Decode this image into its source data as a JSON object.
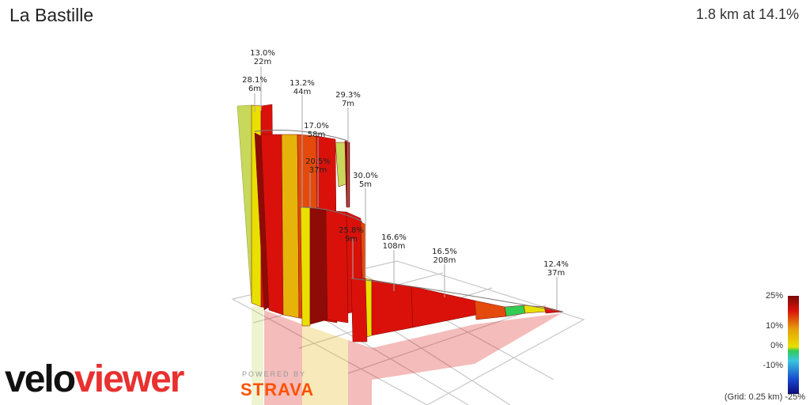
{
  "header": {
    "title": "La Bastille",
    "summary": "1.8 km at 14.1%"
  },
  "chart_data": {
    "type": "area",
    "segments": [
      {
        "gradient_pct": 28.1,
        "distance_m": 6
      },
      {
        "gradient_pct": 13.0,
        "distance_m": 22
      },
      {
        "gradient_pct": 13.2,
        "distance_m": 44
      },
      {
        "gradient_pct": 17.0,
        "distance_m": 58
      },
      {
        "gradient_pct": 20.5,
        "distance_m": 37
      },
      {
        "gradient_pct": 29.3,
        "distance_m": 7
      },
      {
        "gradient_pct": 30.0,
        "distance_m": 5
      },
      {
        "gradient_pct": 25.8,
        "distance_m": 9
      },
      {
        "gradient_pct": 16.6,
        "distance_m": 108
      },
      {
        "gradient_pct": 16.5,
        "distance_m": 208
      },
      {
        "gradient_pct": 12.4,
        "distance_m": 37
      }
    ],
    "segment_labels": [
      {
        "grade": "28.1%",
        "dist": "6m"
      },
      {
        "grade": "13.0%",
        "dist": "22m"
      },
      {
        "grade": "13.2%",
        "dist": "44m"
      },
      {
        "grade": "17.0%",
        "dist": "58m"
      },
      {
        "grade": "20.5%",
        "dist": "37m"
      },
      {
        "grade": "29.3%",
        "dist": "7m"
      },
      {
        "grade": "30.0%",
        "dist": "5m"
      },
      {
        "grade": "25.8%",
        "dist": "9m"
      },
      {
        "grade": "16.6%",
        "dist": "108m"
      },
      {
        "grade": "16.5%",
        "dist": "208m"
      },
      {
        "grade": "12.4%",
        "dist": "37m"
      }
    ],
    "legend": {
      "ticks": [
        "25%",
        "10%",
        "0%",
        "-10%",
        "-25%"
      ],
      "grid_note": "(Grid: 0.25 km)"
    },
    "colors": {
      "steep": "#d9110a",
      "dark": "#8e0b07",
      "orange": "#e34a0c",
      "amber": "#e6b30a",
      "yellow": "#e8e000",
      "lime": "#c8d85a",
      "green": "#33cc55"
    }
  },
  "branding": {
    "logo_part1": "velo",
    "logo_part2": "viewer",
    "powered_by": "POWERED BY",
    "strava": "STRAVA"
  }
}
